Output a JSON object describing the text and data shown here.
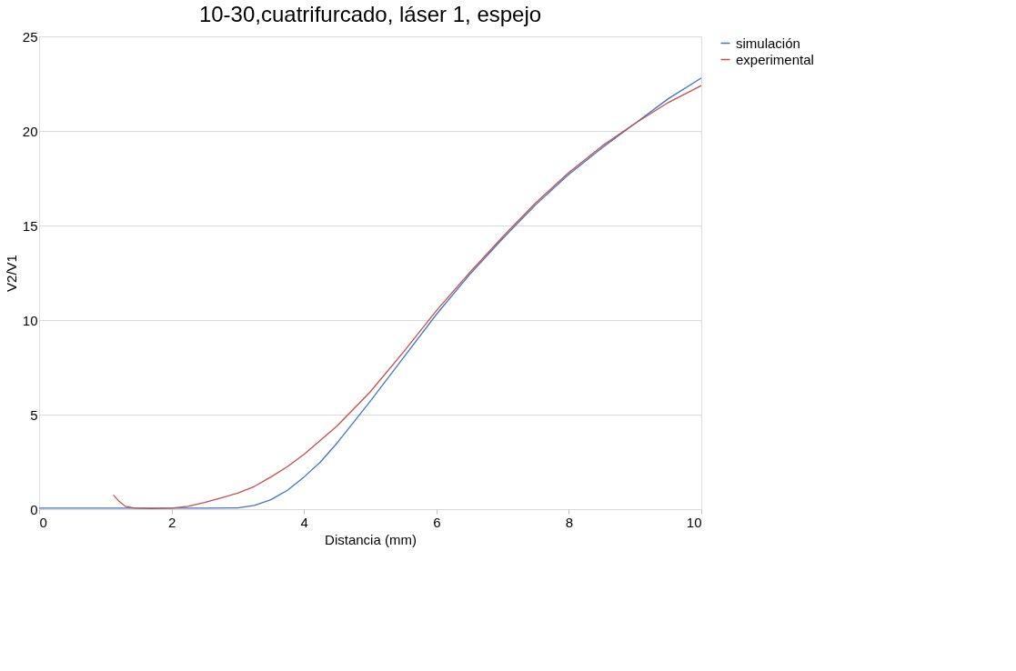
{
  "chart_data": {
    "type": "line",
    "title": "10-30,cuatrifurcado, láser 1, espejo",
    "xlabel": "Distancia (mm)",
    "ylabel": "V2/V1",
    "xlim": [
      0,
      10
    ],
    "xticks": [
      0,
      2,
      4,
      6,
      8,
      10
    ],
    "ylim": [
      0,
      25
    ],
    "yticks": [
      0,
      5,
      10,
      15,
      20,
      25
    ],
    "grid": "y",
    "legend": "right",
    "line_style": "solid",
    "series": [
      {
        "name": "simulación",
        "color": "#4472c4",
        "x": [
          0,
          1,
          2,
          2.5,
          3,
          3.25,
          3.5,
          3.75,
          4,
          4.25,
          4.5,
          4.75,
          5,
          5.5,
          6,
          6.5,
          7,
          7.5,
          8,
          8.5,
          9,
          9.5,
          10
        ],
        "values": [
          0.05,
          0.05,
          0.05,
          0.05,
          0.07,
          0.2,
          0.5,
          1.0,
          1.7,
          2.5,
          3.5,
          4.6,
          5.7,
          8.0,
          10.3,
          12.4,
          14.3,
          16.1,
          17.7,
          19.1,
          20.4,
          21.7,
          22.8
        ]
      },
      {
        "name": "experimental",
        "color": "#c0504d",
        "x": [
          1.12,
          1.2,
          1.3,
          1.45,
          1.7,
          2,
          2.25,
          2.5,
          2.75,
          3,
          3.25,
          3.5,
          3.75,
          4,
          4.5,
          5,
          5.5,
          6,
          6.5,
          7,
          7.5,
          8,
          8.5,
          9,
          9.5,
          10
        ],
        "values": [
          0.75,
          0.45,
          0.15,
          0.05,
          0.03,
          0.05,
          0.15,
          0.35,
          0.6,
          0.85,
          1.2,
          1.7,
          2.25,
          2.9,
          4.4,
          6.2,
          8.3,
          10.5,
          12.5,
          14.4,
          16.2,
          17.8,
          19.2,
          20.4,
          21.5,
          22.4
        ]
      }
    ]
  }
}
